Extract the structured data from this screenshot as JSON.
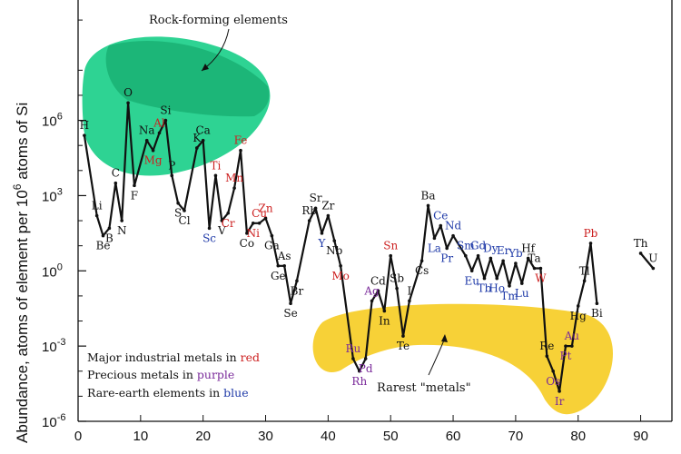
{
  "chart_data": {
    "type": "line",
    "title": "",
    "xlabel": "",
    "ylabel": "Abundance, atoms of element per 10^6 atoms of Si",
    "ylabel_parts": {
      "a": "Abundance, atoms of element per 10",
      "exp": "6",
      "b": " atoms of Si"
    },
    "xlim": [
      0,
      95
    ],
    "ylim_log10": [
      -6,
      10.8
    ],
    "x_ticks": [
      {
        "v": 10,
        "label": "10"
      },
      {
        "v": 20,
        "label": "20"
      },
      {
        "v": 30,
        "label": "30"
      },
      {
        "v": 40,
        "label": "40"
      },
      {
        "v": 50,
        "label": "50"
      },
      {
        "v": 60,
        "label": "60"
      },
      {
        "v": 70,
        "label": "70"
      },
      {
        "v": 80,
        "label": "80"
      },
      {
        "v": 90,
        "label": "90"
      }
    ],
    "x_zero_label": "0",
    "y_ticks": [
      {
        "exp": 6,
        "base": "10",
        "sup": "6"
      },
      {
        "exp": 3,
        "base": "10",
        "sup": "3"
      },
      {
        "exp": 0,
        "base": "10",
        "sup": "0"
      },
      {
        "exp": -3,
        "base": "10",
        "sup": "-3"
      },
      {
        "exp": -6,
        "base": "10",
        "sup": "-6"
      }
    ],
    "colors": {
      "industrial": "#cc1f1f",
      "precious": "#7a2a9a",
      "rare_earth": "#1f3aa8",
      "other": "#111111",
      "rock_region": "#1ccf8a",
      "rock_region_inner": "#0f9f62",
      "rare_region": "#f7cf2c"
    },
    "elements": [
      {
        "sym": "H",
        "z": 1,
        "log": 5.4,
        "cat": "other"
      },
      {
        "sym": "Li",
        "z": 3,
        "log": 2.2,
        "cat": "other"
      },
      {
        "sym": "Be",
        "z": 4,
        "log": 1.4,
        "cat": "other"
      },
      {
        "sym": "B",
        "z": 5,
        "log": 1.7,
        "cat": "other"
      },
      {
        "sym": "C",
        "z": 6,
        "log": 3.5,
        "cat": "other"
      },
      {
        "sym": "N",
        "z": 7,
        "log": 2.0,
        "cat": "other"
      },
      {
        "sym": "O",
        "z": 8,
        "log": 6.7,
        "cat": "other"
      },
      {
        "sym": "F",
        "z": 9,
        "log": 3.4,
        "cat": "other"
      },
      {
        "sym": "Na",
        "z": 11,
        "log": 5.2,
        "cat": "other"
      },
      {
        "sym": "Mg",
        "z": 12,
        "log": 4.8,
        "cat": "industrial"
      },
      {
        "sym": "Al",
        "z": 13,
        "log": 5.5,
        "cat": "industrial"
      },
      {
        "sym": "Si",
        "z": 14,
        "log": 6.0,
        "cat": "other"
      },
      {
        "sym": "P",
        "z": 15,
        "log": 3.8,
        "cat": "other"
      },
      {
        "sym": "S",
        "z": 16,
        "log": 2.7,
        "cat": "other"
      },
      {
        "sym": "Cl",
        "z": 17,
        "log": 2.4,
        "cat": "other"
      },
      {
        "sym": "K",
        "z": 19,
        "log": 4.9,
        "cat": "other"
      },
      {
        "sym": "Ca",
        "z": 20,
        "log": 5.2,
        "cat": "other"
      },
      {
        "sym": "Sc",
        "z": 21,
        "log": 1.7,
        "cat": "rare_earth"
      },
      {
        "sym": "Ti",
        "z": 22,
        "log": 3.8,
        "cat": "industrial"
      },
      {
        "sym": "V",
        "z": 23,
        "log": 2.0,
        "cat": "other"
      },
      {
        "sym": "Cr",
        "z": 24,
        "log": 2.3,
        "cat": "industrial"
      },
      {
        "sym": "Mn",
        "z": 25,
        "log": 3.3,
        "cat": "industrial"
      },
      {
        "sym": "Fe",
        "z": 26,
        "log": 4.8,
        "cat": "industrial"
      },
      {
        "sym": "Co",
        "z": 27,
        "log": 1.5,
        "cat": "other"
      },
      {
        "sym": "Ni",
        "z": 28,
        "log": 1.9,
        "cat": "industrial"
      },
      {
        "sym": "Cu",
        "z": 29,
        "log": 1.9,
        "cat": "industrial"
      },
      {
        "sym": "Zn",
        "z": 30,
        "log": 2.1,
        "cat": "industrial"
      },
      {
        "sym": "Ga",
        "z": 31,
        "log": 1.4,
        "cat": "other"
      },
      {
        "sym": "Ge",
        "z": 32,
        "log": 0.2,
        "cat": "other"
      },
      {
        "sym": "As",
        "z": 33,
        "log": 0.2,
        "cat": "other"
      },
      {
        "sym": "Se",
        "z": 34,
        "log": -1.3,
        "cat": "other"
      },
      {
        "sym": "Br",
        "z": 35,
        "log": -0.4,
        "cat": "other"
      },
      {
        "sym": "Rb",
        "z": 37,
        "log": 2.0,
        "cat": "other"
      },
      {
        "sym": "Sr",
        "z": 38,
        "log": 2.5,
        "cat": "other"
      },
      {
        "sym": "Y",
        "z": 39,
        "log": 1.5,
        "cat": "rare_earth"
      },
      {
        "sym": "Zr",
        "z": 40,
        "log": 2.2,
        "cat": "other"
      },
      {
        "sym": "Nb",
        "z": 41,
        "log": 1.2,
        "cat": "other"
      },
      {
        "sym": "Mo",
        "z": 42,
        "log": 0.2,
        "cat": "industrial"
      },
      {
        "sym": "Ru",
        "z": 44,
        "log": -3.5,
        "cat": "precious"
      },
      {
        "sym": "Rh",
        "z": 45,
        "log": -4.0,
        "cat": "precious"
      },
      {
        "sym": "Pd",
        "z": 46,
        "log": -3.5,
        "cat": "precious"
      },
      {
        "sym": "Ag",
        "z": 47,
        "log": -1.2,
        "cat": "precious"
      },
      {
        "sym": "Cd",
        "z": 48,
        "log": -0.8,
        "cat": "other"
      },
      {
        "sym": "In",
        "z": 49,
        "log": -1.6,
        "cat": "other"
      },
      {
        "sym": "Sn",
        "z": 50,
        "log": 0.6,
        "cat": "industrial"
      },
      {
        "sym": "Sb",
        "z": 51,
        "log": -0.7,
        "cat": "other"
      },
      {
        "sym": "Te",
        "z": 52,
        "log": -2.6,
        "cat": "other"
      },
      {
        "sym": "I",
        "z": 53,
        "log": -1.2,
        "cat": "other"
      },
      {
        "sym": "Cs",
        "z": 55,
        "log": 0.4,
        "cat": "other"
      },
      {
        "sym": "Ba",
        "z": 56,
        "log": 2.6,
        "cat": "other"
      },
      {
        "sym": "La",
        "z": 57,
        "log": 1.3,
        "cat": "rare_earth"
      },
      {
        "sym": "Ce",
        "z": 58,
        "log": 1.8,
        "cat": "rare_earth"
      },
      {
        "sym": "Pr",
        "z": 59,
        "log": 0.9,
        "cat": "rare_earth"
      },
      {
        "sym": "Nd",
        "z": 60,
        "log": 1.4,
        "cat": "rare_earth"
      },
      {
        "sym": "Sm",
        "z": 62,
        "log": 0.6,
        "cat": "rare_earth"
      },
      {
        "sym": "Eu",
        "z": 63,
        "log": 0.0,
        "cat": "rare_earth"
      },
      {
        "sym": "Gd",
        "z": 64,
        "log": 0.6,
        "cat": "rare_earth"
      },
      {
        "sym": "Tb",
        "z": 65,
        "log": -0.3,
        "cat": "rare_earth"
      },
      {
        "sym": "Dy",
        "z": 66,
        "log": 0.5,
        "cat": "rare_earth"
      },
      {
        "sym": "Ho",
        "z": 67,
        "log": -0.3,
        "cat": "rare_earth"
      },
      {
        "sym": "Er",
        "z": 68,
        "log": 0.4,
        "cat": "rare_earth"
      },
      {
        "sym": "Tm",
        "z": 69,
        "log": -0.6,
        "cat": "rare_earth"
      },
      {
        "sym": "Yb",
        "z": 70,
        "log": 0.3,
        "cat": "rare_earth"
      },
      {
        "sym": "Lu",
        "z": 71,
        "log": -0.5,
        "cat": "rare_earth"
      },
      {
        "sym": "Hf",
        "z": 72,
        "log": 0.5,
        "cat": "other"
      },
      {
        "sym": "Ta",
        "z": 73,
        "log": 0.1,
        "cat": "other"
      },
      {
        "sym": "W",
        "z": 74,
        "log": 0.1,
        "cat": "industrial"
      },
      {
        "sym": "Re",
        "z": 75,
        "log": -3.4,
        "cat": "other"
      },
      {
        "sym": "Os",
        "z": 76,
        "log": -4.0,
        "cat": "precious"
      },
      {
        "sym": "Ir",
        "z": 77,
        "log": -4.8,
        "cat": "precious"
      },
      {
        "sym": "Pt",
        "z": 78,
        "log": -3.0,
        "cat": "precious"
      },
      {
        "sym": "Au",
        "z": 79,
        "log": -3.0,
        "cat": "precious"
      },
      {
        "sym": "Hg",
        "z": 80,
        "log": -1.4,
        "cat": "other"
      },
      {
        "sym": "Tl",
        "z": 81,
        "log": -0.4,
        "cat": "other"
      },
      {
        "sym": "Pb",
        "z": 82,
        "log": 1.1,
        "cat": "industrial"
      },
      {
        "sym": "Bi",
        "z": 83,
        "log": -1.3,
        "cat": "other"
      },
      {
        "sym": "Th",
        "z": 90,
        "log": 0.7,
        "cat": "other"
      },
      {
        "sym": "U",
        "z": 92,
        "log": 0.1,
        "cat": "other"
      }
    ],
    "annotations": {
      "rock_forming": "Rock-forming elements",
      "rarest_metals": "Rarest \"metals\""
    },
    "legend": [
      {
        "prefix": "Major industrial metals in ",
        "word": "red",
        "cat": "industrial"
      },
      {
        "prefix": "Precious metals in ",
        "word": "purple",
        "cat": "precious"
      },
      {
        "prefix": "Rare-earth elements in ",
        "word": "blue",
        "cat": "rare_earth"
      }
    ]
  }
}
